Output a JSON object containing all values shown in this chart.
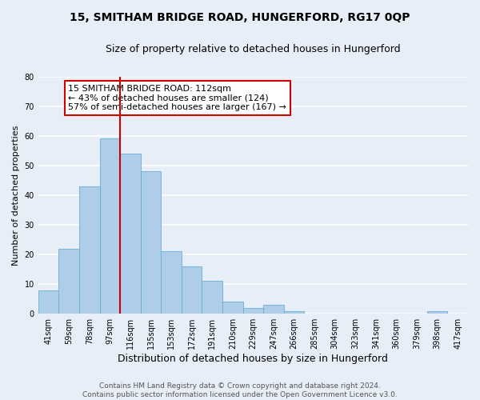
{
  "title": "15, SMITHAM BRIDGE ROAD, HUNGERFORD, RG17 0QP",
  "subtitle": "Size of property relative to detached houses in Hungerford",
  "xlabel": "Distribution of detached houses by size in Hungerford",
  "ylabel": "Number of detached properties",
  "bar_labels": [
    "41sqm",
    "59sqm",
    "78sqm",
    "97sqm",
    "116sqm",
    "135sqm",
    "153sqm",
    "172sqm",
    "191sqm",
    "210sqm",
    "229sqm",
    "247sqm",
    "266sqm",
    "285sqm",
    "304sqm",
    "323sqm",
    "341sqm",
    "360sqm",
    "379sqm",
    "398sqm",
    "417sqm"
  ],
  "bar_values": [
    8,
    22,
    43,
    59,
    54,
    48,
    21,
    16,
    11,
    4,
    2,
    3,
    1,
    0,
    0,
    0,
    0,
    0,
    0,
    1,
    0
  ],
  "bar_color": "#aecde8",
  "bar_edge_color": "#6aaed6",
  "vline_color": "#cc0000",
  "vline_index": 3.5,
  "ylim": [
    0,
    80
  ],
  "yticks": [
    0,
    10,
    20,
    30,
    40,
    50,
    60,
    70,
    80
  ],
  "annotation_title": "15 SMITHAM BRIDGE ROAD: 112sqm",
  "annotation_line1": "← 43% of detached houses are smaller (124)",
  "annotation_line2": "57% of semi-detached houses are larger (167) →",
  "annotation_box_color": "#ffffff",
  "annotation_border_color": "#cc0000",
  "footer_line1": "Contains HM Land Registry data © Crown copyright and database right 2024.",
  "footer_line2": "Contains public sector information licensed under the Open Government Licence v3.0.",
  "background_color": "#e8eef8",
  "plot_bg_color": "#e8eef8",
  "grid_color": "#ffffff",
  "title_fontsize": 10,
  "subtitle_fontsize": 9,
  "xlabel_fontsize": 9,
  "ylabel_fontsize": 8,
  "tick_fontsize": 7,
  "footer_fontsize": 6.5,
  "annotation_fontsize": 8
}
